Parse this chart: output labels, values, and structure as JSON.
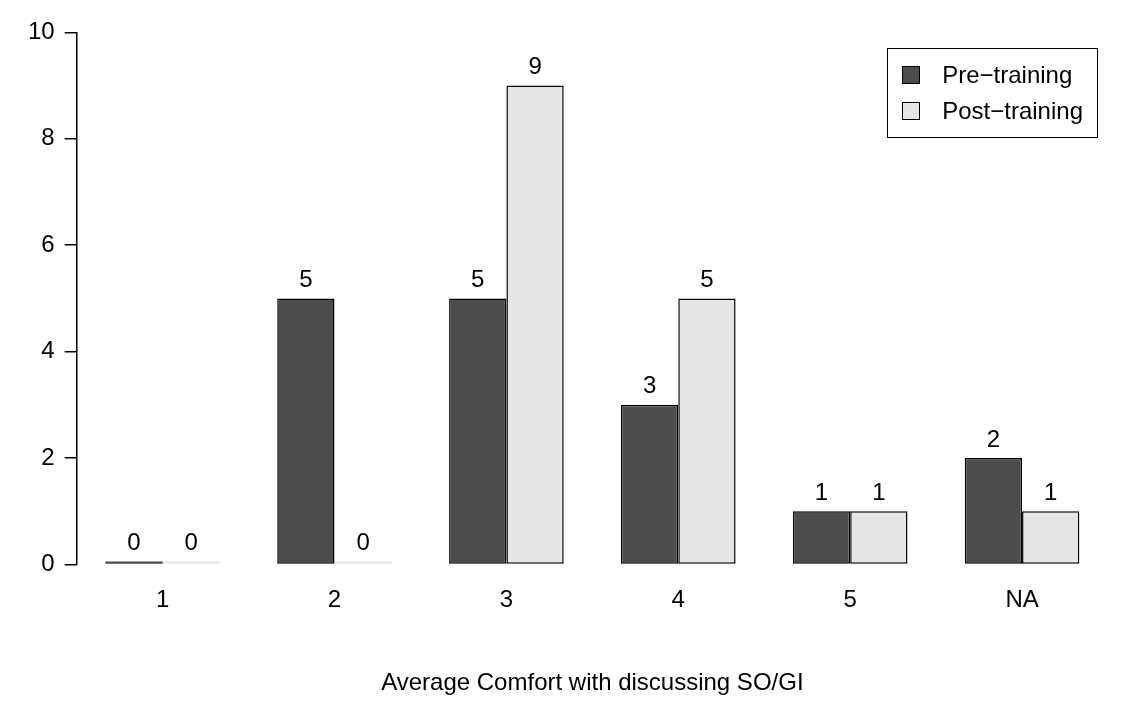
{
  "chart_data": {
    "type": "bar",
    "xlabel": "Average Comfort with discussing SO/GI",
    "categories": [
      "1",
      "2",
      "3",
      "4",
      "5",
      "NA"
    ],
    "series": [
      {
        "name": "Pre−training",
        "color": "#4d4d4d",
        "values": [
          0,
          5,
          5,
          3,
          1,
          2
        ]
      },
      {
        "name": "Post−training",
        "color": "#e6e6e6",
        "values": [
          0,
          0,
          9,
          5,
          1,
          1
        ]
      }
    ],
    "ylim": [
      0,
      10
    ],
    "yticks": [
      0,
      2,
      4,
      6,
      8,
      10
    ],
    "data_labels": true,
    "legend": "top right"
  }
}
